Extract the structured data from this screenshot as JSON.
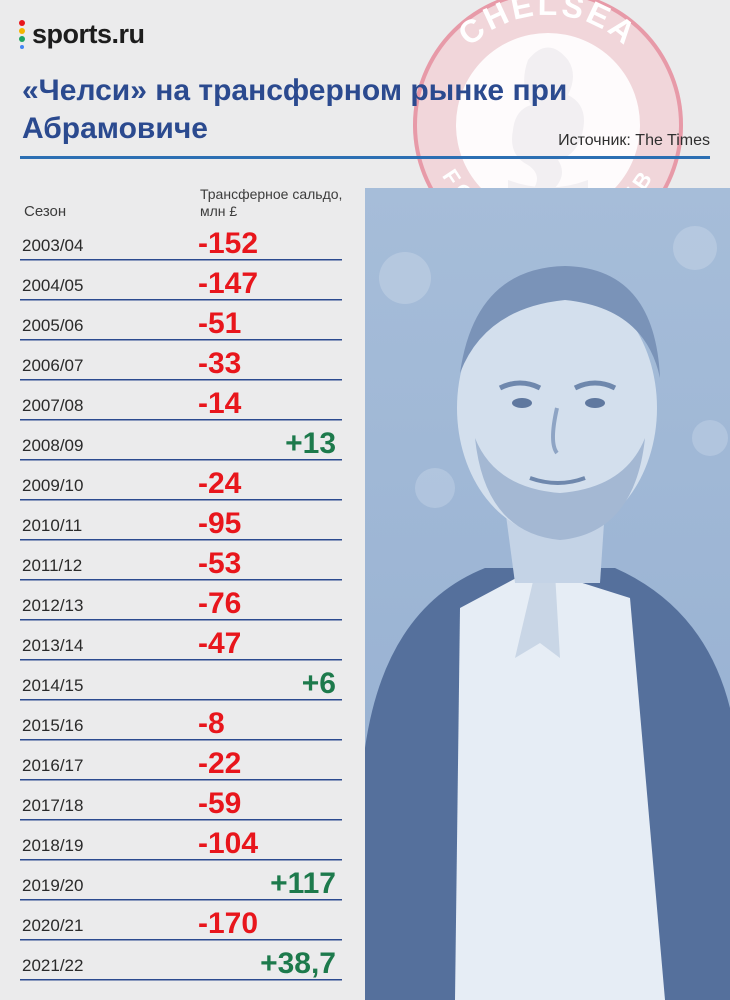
{
  "brand": {
    "name": "sports.ru"
  },
  "header": {
    "title": "«Челси» на трансферном рынке при Абрамовиче",
    "source": "Источник: The Times"
  },
  "crest": {
    "top_text": "CHELSEA",
    "bottom_text": "FOOTBALL CLUB"
  },
  "colors": {
    "negative": "#e8161c",
    "positive": "#1d7a4c",
    "accent": "#2b4a8f"
  },
  "chart_data": {
    "type": "table",
    "title": "«Челси» на трансферном рынке при Абрамовиче",
    "column_labels": {
      "season": "Сезон",
      "value": "Трансферное сальдо, млн £"
    },
    "unit": "млн £",
    "rows": [
      {
        "season": "2003/04",
        "value": -152,
        "label": "-152"
      },
      {
        "season": "2004/05",
        "value": -147,
        "label": "-147"
      },
      {
        "season": "2005/06",
        "value": -51,
        "label": "-51"
      },
      {
        "season": "2006/07",
        "value": -33,
        "label": "-33"
      },
      {
        "season": "2007/08",
        "value": -14,
        "label": "-14"
      },
      {
        "season": "2008/09",
        "value": 13,
        "label": "+13"
      },
      {
        "season": "2009/10",
        "value": -24,
        "label": "-24"
      },
      {
        "season": "2010/11",
        "value": -95,
        "label": "-95"
      },
      {
        "season": "2011/12",
        "value": -53,
        "label": "-53"
      },
      {
        "season": "2012/13",
        "value": -76,
        "label": "-76"
      },
      {
        "season": "2013/14",
        "value": -47,
        "label": "-47"
      },
      {
        "season": "2014/15",
        "value": 6,
        "label": "+6"
      },
      {
        "season": "2015/16",
        "value": -8,
        "label": "-8"
      },
      {
        "season": "2016/17",
        "value": -22,
        "label": "-22"
      },
      {
        "season": "2017/18",
        "value": -59,
        "label": "-59"
      },
      {
        "season": "2018/19",
        "value": -104,
        "label": "-104"
      },
      {
        "season": "2019/20",
        "value": 117,
        "label": "+117"
      },
      {
        "season": "2020/21",
        "value": -170,
        "label": "-170"
      },
      {
        "season": "2021/22",
        "value": 38.7,
        "label": "+38,7"
      }
    ]
  }
}
